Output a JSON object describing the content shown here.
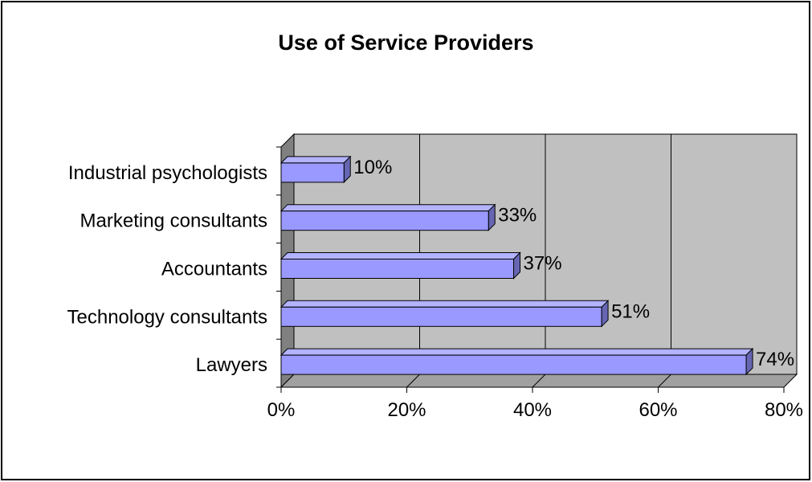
{
  "chart_data": {
    "type": "bar",
    "orientation": "horizontal",
    "title": "Use of Service Providers",
    "categories": [
      "Industrial psychologists",
      "Marketing consultants",
      "Accountants",
      "Technology consultants",
      "Lawyers"
    ],
    "values": [
      10,
      33,
      37,
      51,
      74
    ],
    "value_labels": [
      "10%",
      "33%",
      "37%",
      "51%",
      "74%"
    ],
    "x_ticks": [
      "0%",
      "20%",
      "40%",
      "60%",
      "80%"
    ],
    "xlim": [
      0,
      80
    ],
    "xlabel": "",
    "ylabel": "",
    "grid": true,
    "legend": "none",
    "style": "3d",
    "colors": {
      "bar_face": "#9999ff",
      "bar_top": "#b3b3ff",
      "bar_side": "#6666b3",
      "wall": "#c0c0c0",
      "floor": "#a0a0a0",
      "side_wall": "#808080"
    }
  }
}
